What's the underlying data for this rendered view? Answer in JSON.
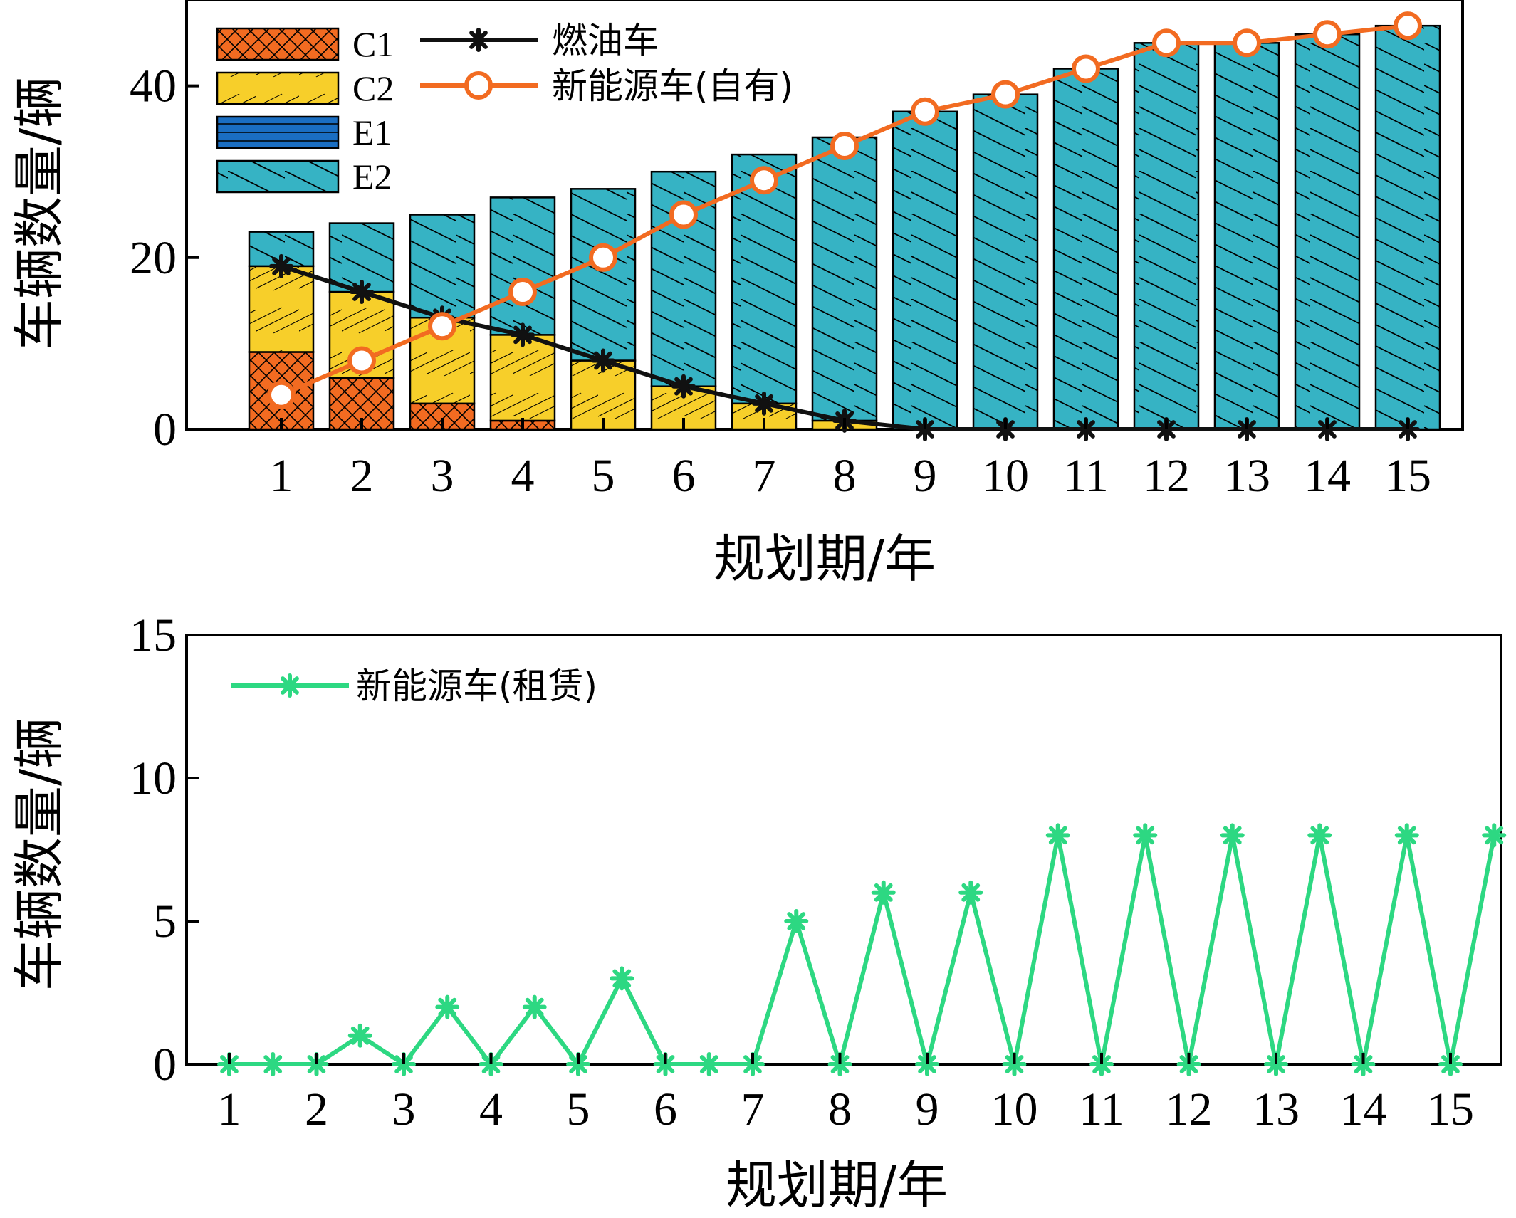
{
  "chart_data": [
    {
      "type": "bar",
      "stacked": true,
      "categories": [
        "1",
        "2",
        "3",
        "4",
        "5",
        "6",
        "7",
        "8",
        "9",
        "10",
        "11",
        "12",
        "13",
        "14",
        "15"
      ],
      "series": [
        {
          "name": "C1",
          "color": "#f26b21",
          "pattern": "crosshatch",
          "values": [
            9,
            6,
            3,
            1,
            0,
            0,
            0,
            0,
            0,
            0,
            0,
            0,
            0,
            0,
            0
          ]
        },
        {
          "name": "C2",
          "color": "#f7cf2a",
          "pattern": "diagonal-up",
          "values": [
            10,
            10,
            10,
            10,
            8,
            5,
            3,
            1,
            0,
            0,
            0,
            0,
            0,
            0,
            0
          ]
        },
        {
          "name": "E1",
          "color": "#1a6ec2",
          "pattern": "horizontal",
          "values": [
            0,
            0,
            0,
            0,
            0,
            0,
            0,
            0,
            0,
            0,
            0,
            0,
            0,
            0,
            0
          ]
        },
        {
          "name": "E2",
          "color": "#36b3c4",
          "pattern": "diagonal-down",
          "values": [
            4,
            8,
            12,
            16,
            20,
            25,
            29,
            33,
            37,
            39,
            42,
            45,
            45,
            46,
            47
          ]
        }
      ],
      "lines": [
        {
          "name": "燃油车",
          "color": "#111111",
          "marker": "asterisk",
          "values": [
            19,
            16,
            13,
            11,
            8,
            5,
            3,
            1,
            0,
            0,
            0,
            0,
            0,
            0,
            0
          ]
        },
        {
          "name": "新能源车(自有)",
          "color": "#f26b21",
          "marker": "circle",
          "values": [
            4,
            8,
            12,
            16,
            20,
            25,
            29,
            33,
            37,
            39,
            42,
            45,
            45,
            46,
            47
          ]
        }
      ],
      "xlabel": "规划期/年",
      "ylabel": "车辆数量/辆",
      "ylim": [
        0,
        50
      ],
      "yticks": [
        0,
        20,
        40
      ],
      "legend": "top-left"
    },
    {
      "type": "line",
      "xticks": [
        "1",
        "2",
        "3",
        "4",
        "5",
        "6",
        "7",
        "8",
        "9",
        "10",
        "11",
        "12",
        "13",
        "14",
        "15"
      ],
      "series": [
        {
          "name": "新能源车(租赁)",
          "color": "#2dd882",
          "marker": "asterisk",
          "x": [
            1,
            1.5,
            2,
            2.5,
            3,
            3.5,
            4,
            4.5,
            5,
            5.5,
            6,
            6.5,
            7,
            7.5,
            8,
            8.5,
            9,
            9.5,
            10,
            10.5,
            11,
            11.5,
            12,
            12.5,
            13,
            13.5,
            14,
            14.5,
            15,
            15.5
          ],
          "values": [
            0,
            0,
            0,
            1,
            0,
            2,
            0,
            2,
            0,
            3,
            0,
            0,
            0,
            5,
            0,
            6,
            0,
            6,
            0,
            8,
            0,
            8,
            0,
            8,
            0,
            8,
            0,
            8,
            0,
            8
          ]
        }
      ],
      "xlabel": "规划期/年",
      "ylabel": "车辆数量/辆",
      "ylim": [
        0,
        15
      ],
      "yticks": [
        0,
        5,
        10,
        15
      ],
      "legend": "top-left"
    }
  ]
}
